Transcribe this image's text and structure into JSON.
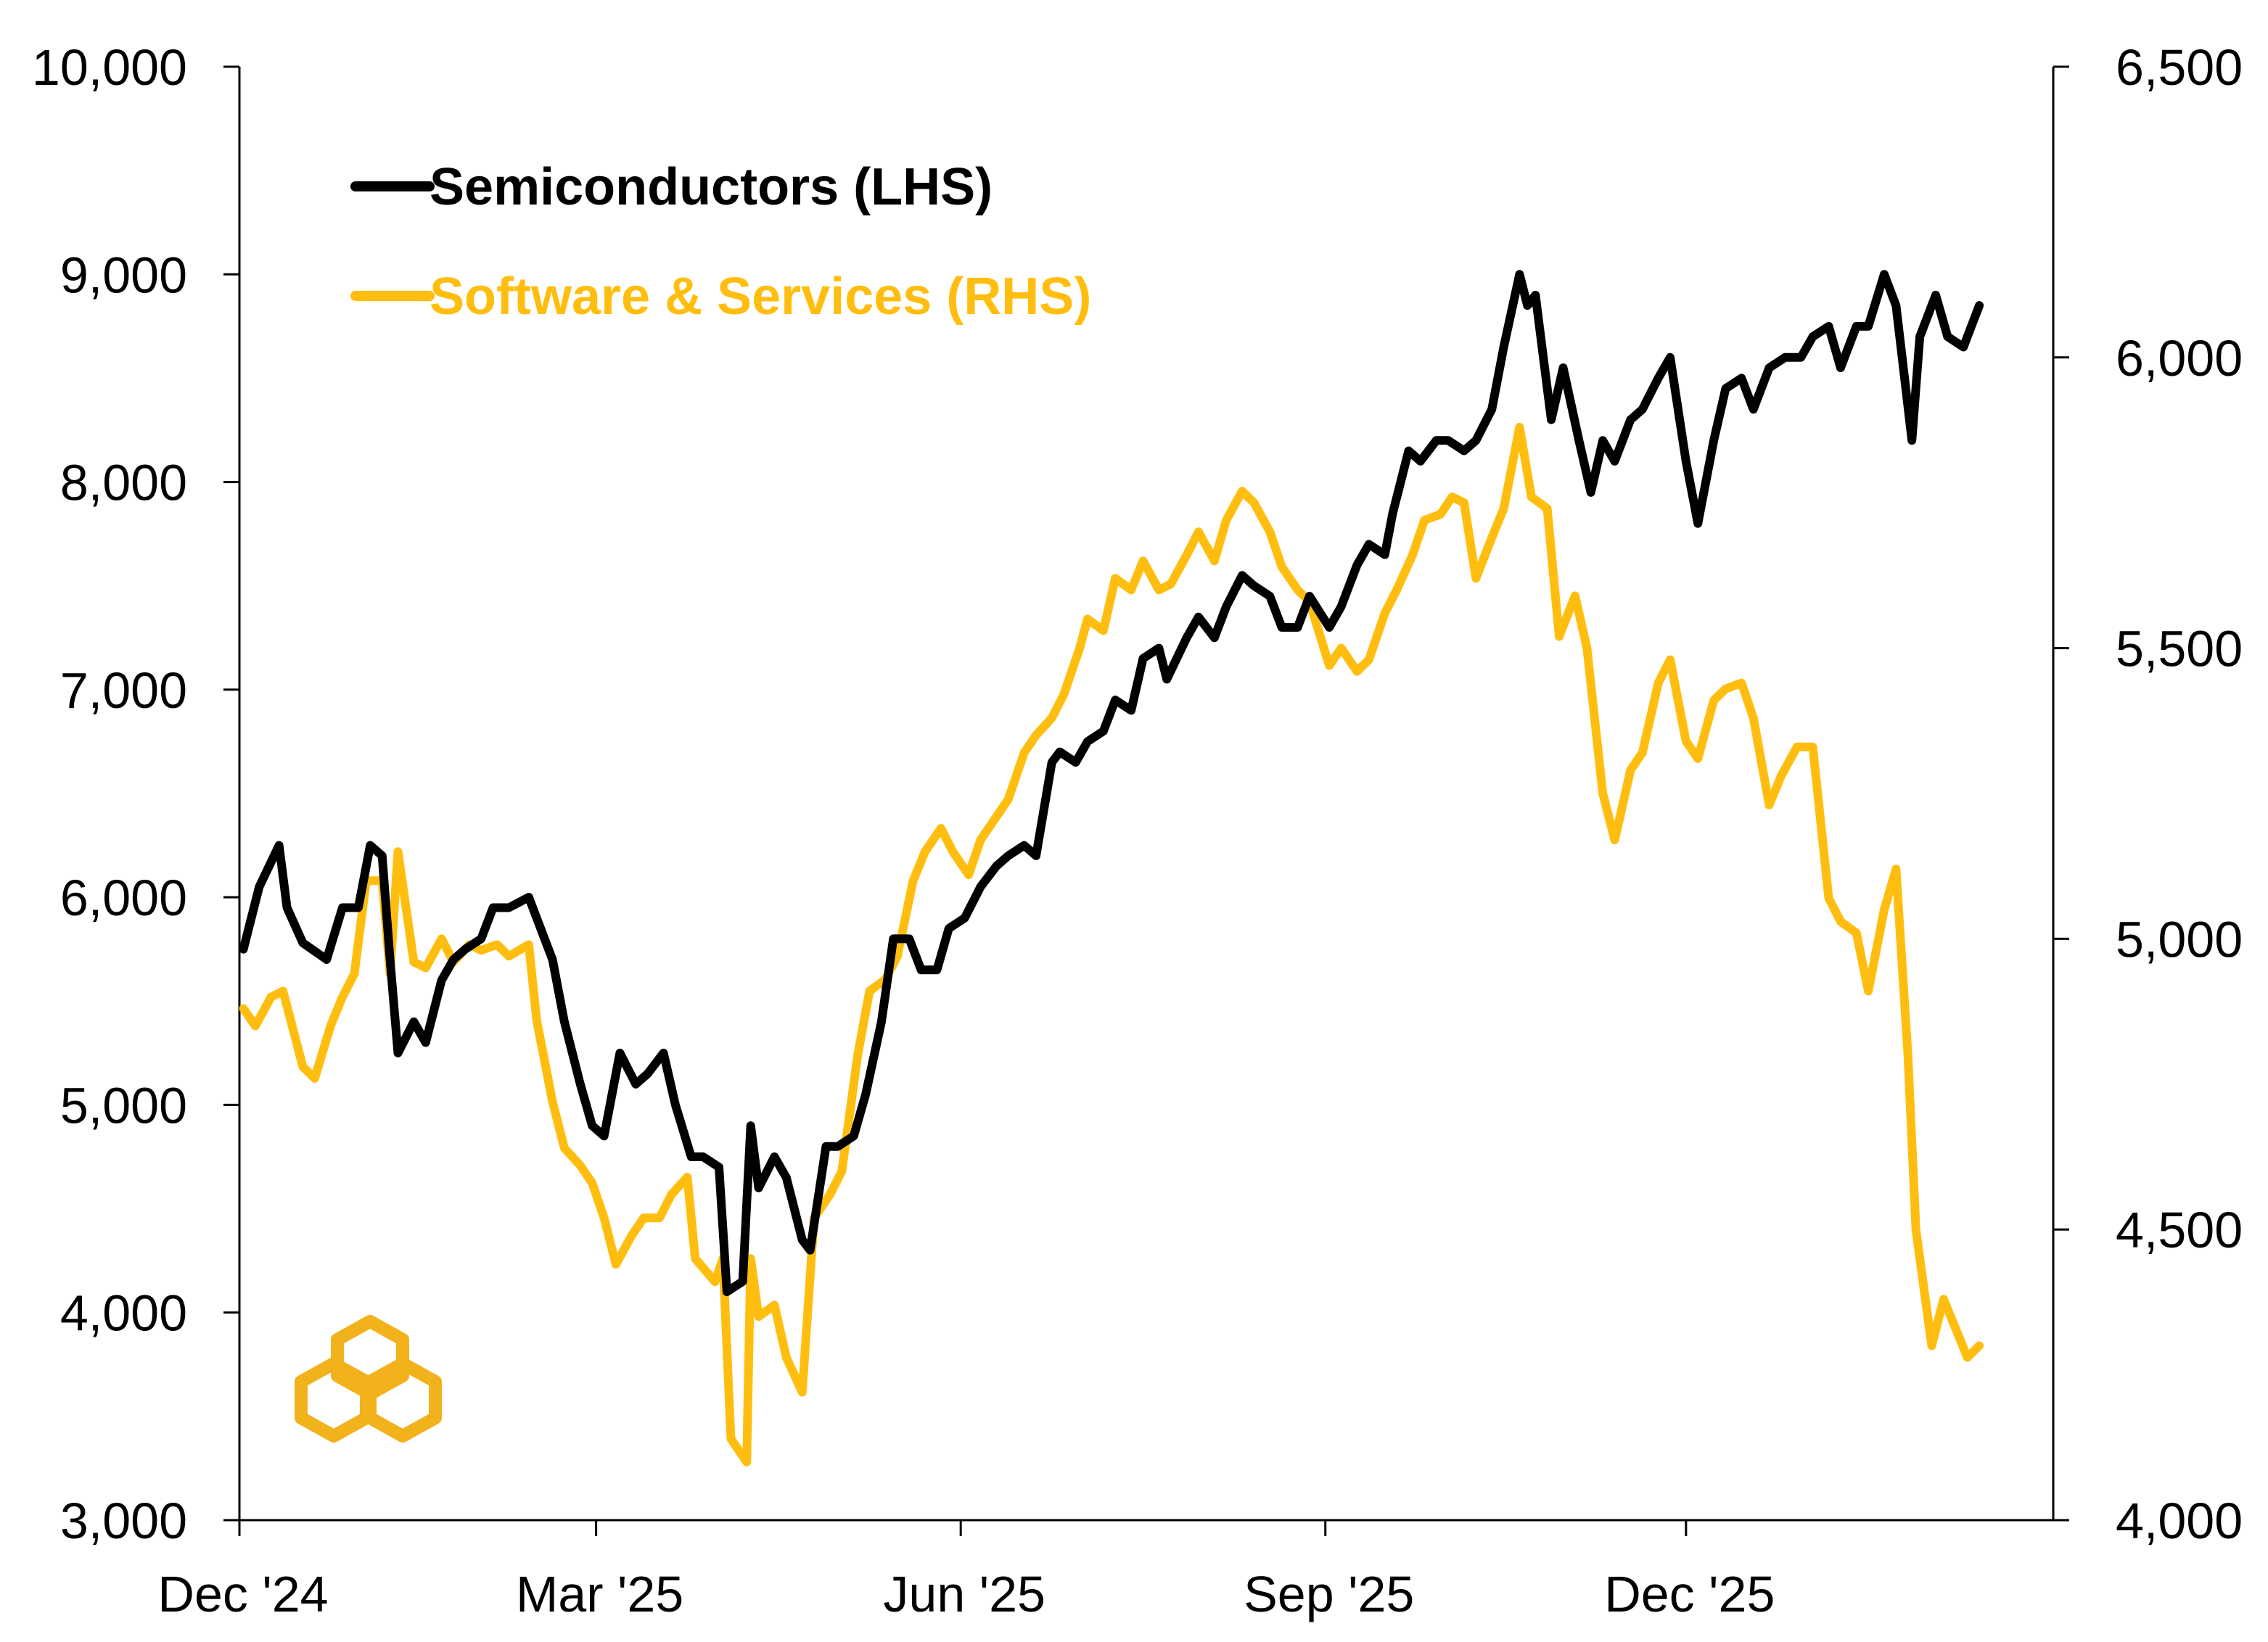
{
  "chart_data": {
    "type": "line",
    "x_ticks": [
      "Dec '24",
      "Mar '25",
      "Jun '25",
      "Sep '25",
      "Dec '25"
    ],
    "y_left": {
      "min": 3000,
      "max": 10000,
      "ticks": [
        "3,000",
        "4,000",
        "5,000",
        "6,000",
        "7,000",
        "8,000",
        "9,000",
        "10,000"
      ]
    },
    "y_right": {
      "min": 4000,
      "max": 6500,
      "ticks": [
        "4,000",
        "4,500",
        "5,000",
        "5,500",
        "6,000",
        "6,500"
      ]
    },
    "grid": false,
    "legend_position": "top-left",
    "series": [
      {
        "name": "Semiconductors (LHS)",
        "axis": "left",
        "color": "#000000",
        "points": [
          [
            "2024-12-02",
            5750
          ],
          [
            "2024-12-06",
            6050
          ],
          [
            "2024-12-11",
            6250
          ],
          [
            "2024-12-13",
            5950
          ],
          [
            "2024-12-17",
            5780
          ],
          [
            "2024-12-23",
            5700
          ],
          [
            "2024-12-27",
            5950
          ],
          [
            "2024-12-31",
            5950
          ],
          [
            "2025-01-03",
            6250
          ],
          [
            "2025-01-06",
            6200
          ],
          [
            "2025-01-08",
            5700
          ],
          [
            "2025-01-10",
            5250
          ],
          [
            "2025-01-14",
            5400
          ],
          [
            "2025-01-17",
            5300
          ],
          [
            "2025-01-21",
            5600
          ],
          [
            "2025-01-24",
            5700
          ],
          [
            "2025-01-27",
            5750
          ],
          [
            "2025-01-31",
            5800
          ],
          [
            "2025-02-03",
            5950
          ],
          [
            "2025-02-07",
            5950
          ],
          [
            "2025-02-12",
            6000
          ],
          [
            "2025-02-14",
            5900
          ],
          [
            "2025-02-18",
            5700
          ],
          [
            "2025-02-21",
            5400
          ],
          [
            "2025-02-25",
            5100
          ],
          [
            "2025-02-28",
            4900
          ],
          [
            "2025-03-03",
            4850
          ],
          [
            "2025-03-05",
            5050
          ],
          [
            "2025-03-07",
            5250
          ],
          [
            "2025-03-11",
            5100
          ],
          [
            "2025-03-14",
            5150
          ],
          [
            "2025-03-18",
            5250
          ],
          [
            "2025-03-21",
            5000
          ],
          [
            "2025-03-25",
            4750
          ],
          [
            "2025-03-28",
            4750
          ],
          [
            "2025-04-01",
            4700
          ],
          [
            "2025-04-03",
            4100
          ],
          [
            "2025-04-07",
            4150
          ],
          [
            "2025-04-09",
            4900
          ],
          [
            "2025-04-11",
            4600
          ],
          [
            "2025-04-15",
            4750
          ],
          [
            "2025-04-18",
            4650
          ],
          [
            "2025-04-22",
            4350
          ],
          [
            "2025-04-24",
            4300
          ],
          [
            "2025-04-28",
            4800
          ],
          [
            "2025-05-01",
            4800
          ],
          [
            "2025-05-05",
            4850
          ],
          [
            "2025-05-08",
            5050
          ],
          [
            "2025-05-12",
            5400
          ],
          [
            "2025-05-15",
            5800
          ],
          [
            "2025-05-19",
            5800
          ],
          [
            "2025-05-22",
            5650
          ],
          [
            "2025-05-26",
            5650
          ],
          [
            "2025-05-29",
            5850
          ],
          [
            "2025-06-02",
            5900
          ],
          [
            "2025-06-06",
            6050
          ],
          [
            "2025-06-10",
            6150
          ],
          [
            "2025-06-13",
            6200
          ],
          [
            "2025-06-17",
            6250
          ],
          [
            "2025-06-20",
            6200
          ],
          [
            "2025-06-24",
            6650
          ],
          [
            "2025-06-26",
            6700
          ],
          [
            "2025-06-30",
            6650
          ],
          [
            "2025-07-03",
            6750
          ],
          [
            "2025-07-07",
            6800
          ],
          [
            "2025-07-10",
            6950
          ],
          [
            "2025-07-14",
            6900
          ],
          [
            "2025-07-17",
            7150
          ],
          [
            "2025-07-21",
            7200
          ],
          [
            "2025-07-23",
            7050
          ],
          [
            "2025-07-28",
            7250
          ],
          [
            "2025-07-31",
            7350
          ],
          [
            "2025-08-04",
            7250
          ],
          [
            "2025-08-07",
            7400
          ],
          [
            "2025-08-11",
            7550
          ],
          [
            "2025-08-14",
            7500
          ],
          [
            "2025-08-18",
            7450
          ],
          [
            "2025-08-21",
            7300
          ],
          [
            "2025-08-25",
            7300
          ],
          [
            "2025-08-28",
            7450
          ],
          [
            "2025-09-02",
            7300
          ],
          [
            "2025-09-05",
            7400
          ],
          [
            "2025-09-09",
            7600
          ],
          [
            "2025-09-12",
            7700
          ],
          [
            "2025-09-16",
            7650
          ],
          [
            "2025-09-18",
            7850
          ],
          [
            "2025-09-22",
            8150
          ],
          [
            "2025-09-25",
            8100
          ],
          [
            "2025-09-29",
            8200
          ],
          [
            "2025-10-02",
            8200
          ],
          [
            "2025-10-06",
            8150
          ],
          [
            "2025-10-09",
            8200
          ],
          [
            "2025-10-13",
            8350
          ],
          [
            "2025-10-16",
            8650
          ],
          [
            "2025-10-20",
            9000
          ],
          [
            "2025-10-22",
            8850
          ],
          [
            "2025-10-24",
            8900
          ],
          [
            "2025-10-28",
            8300
          ],
          [
            "2025-10-31",
            8550
          ],
          [
            "2025-11-04",
            8200
          ],
          [
            "2025-11-07",
            7950
          ],
          [
            "2025-11-10",
            8200
          ],
          [
            "2025-11-13",
            8100
          ],
          [
            "2025-11-17",
            8300
          ],
          [
            "2025-11-20",
            8350
          ],
          [
            "2025-11-24",
            8500
          ],
          [
            "2025-11-27",
            8600
          ],
          [
            "2025-12-01",
            8100
          ],
          [
            "2025-12-04",
            7800
          ],
          [
            "2025-12-08",
            8200
          ],
          [
            "2025-12-11",
            8450
          ],
          [
            "2025-12-15",
            8500
          ],
          [
            "2025-12-18",
            8350
          ],
          [
            "2025-12-22",
            8550
          ],
          [
            "2025-12-26",
            8600
          ],
          [
            "2025-12-30",
            8600
          ],
          [
            "2026-01-02",
            8700
          ],
          [
            "2026-01-06",
            8750
          ],
          [
            "2026-01-09",
            8550
          ],
          [
            "2026-01-13",
            8750
          ],
          [
            "2026-01-16",
            8750
          ],
          [
            "2026-01-20",
            9000
          ],
          [
            "2026-01-23",
            8850
          ],
          [
            "2026-01-27",
            8200
          ],
          [
            "2026-01-29",
            8700
          ],
          [
            "2026-02-02",
            8900
          ],
          [
            "2026-02-05",
            8700
          ],
          [
            "2026-02-09",
            8650
          ],
          [
            "2026-02-13",
            8850
          ]
        ]
      },
      {
        "name": "Software & Services (RHS)",
        "axis": "right",
        "color": "#FFBE0F",
        "points": [
          [
            "2024-12-02",
            4880
          ],
          [
            "2024-12-05",
            4850
          ],
          [
            "2024-12-09",
            4900
          ],
          [
            "2024-12-12",
            4910
          ],
          [
            "2024-12-17",
            4780
          ],
          [
            "2024-12-20",
            4760
          ],
          [
            "2024-12-24",
            4850
          ],
          [
            "2024-12-27",
            4900
          ],
          [
            "2024-12-30",
            4940
          ],
          [
            "2025-01-02",
            5100
          ],
          [
            "2025-01-06",
            5100
          ],
          [
            "2025-01-08",
            4940
          ],
          [
            "2025-01-10",
            5150
          ],
          [
            "2025-01-14",
            4960
          ],
          [
            "2025-01-17",
            4950
          ],
          [
            "2025-01-21",
            5000
          ],
          [
            "2025-01-24",
            4960
          ],
          [
            "2025-01-28",
            4990
          ],
          [
            "2025-01-31",
            4980
          ],
          [
            "2025-02-04",
            4990
          ],
          [
            "2025-02-07",
            4970
          ],
          [
            "2025-02-12",
            4990
          ],
          [
            "2025-02-14",
            4860
          ],
          [
            "2025-02-18",
            4720
          ],
          [
            "2025-02-21",
            4640
          ],
          [
            "2025-02-25",
            4610
          ],
          [
            "2025-02-28",
            4580
          ],
          [
            "2025-03-03",
            4520
          ],
          [
            "2025-03-06",
            4440
          ],
          [
            "2025-03-10",
            4490
          ],
          [
            "2025-03-13",
            4520
          ],
          [
            "2025-03-17",
            4520
          ],
          [
            "2025-03-20",
            4560
          ],
          [
            "2025-03-24",
            4590
          ],
          [
            "2025-03-26",
            4450
          ],
          [
            "2025-03-31",
            4410
          ],
          [
            "2025-04-02",
            4450
          ],
          [
            "2025-04-04",
            4140
          ],
          [
            "2025-04-08",
            4100
          ],
          [
            "2025-04-09",
            4450
          ],
          [
            "2025-04-11",
            4350
          ],
          [
            "2025-04-15",
            4370
          ],
          [
            "2025-04-18",
            4280
          ],
          [
            "2025-04-22",
            4220
          ],
          [
            "2025-04-25",
            4520
          ],
          [
            "2025-04-29",
            4560
          ],
          [
            "2025-05-02",
            4600
          ],
          [
            "2025-05-06",
            4800
          ],
          [
            "2025-05-09",
            4910
          ],
          [
            "2025-05-13",
            4930
          ],
          [
            "2025-05-16",
            4970
          ],
          [
            "2025-05-20",
            5100
          ],
          [
            "2025-05-23",
            5150
          ],
          [
            "2025-05-27",
            5190
          ],
          [
            "2025-05-30",
            5150
          ],
          [
            "2025-06-03",
            5110
          ],
          [
            "2025-06-06",
            5170
          ],
          [
            "2025-06-10",
            5210
          ],
          [
            "2025-06-13",
            5240
          ],
          [
            "2025-06-17",
            5320
          ],
          [
            "2025-06-20",
            5350
          ],
          [
            "2025-06-24",
            5380
          ],
          [
            "2025-06-27",
            5420
          ],
          [
            "2025-07-01",
            5500
          ],
          [
            "2025-07-03",
            5550
          ],
          [
            "2025-07-07",
            5530
          ],
          [
            "2025-07-10",
            5620
          ],
          [
            "2025-07-14",
            5600
          ],
          [
            "2025-07-17",
            5650
          ],
          [
            "2025-07-21",
            5600
          ],
          [
            "2025-07-24",
            5610
          ],
          [
            "2025-07-28",
            5660
          ],
          [
            "2025-07-31",
            5700
          ],
          [
            "2025-08-04",
            5650
          ],
          [
            "2025-08-07",
            5720
          ],
          [
            "2025-08-11",
            5770
          ],
          [
            "2025-08-14",
            5750
          ],
          [
            "2025-08-18",
            5700
          ],
          [
            "2025-08-21",
            5640
          ],
          [
            "2025-08-25",
            5600
          ],
          [
            "2025-08-28",
            5580
          ],
          [
            "2025-09-02",
            5470
          ],
          [
            "2025-09-05",
            5500
          ],
          [
            "2025-09-09",
            5460
          ],
          [
            "2025-09-12",
            5480
          ],
          [
            "2025-09-16",
            5560
          ],
          [
            "2025-09-19",
            5600
          ],
          [
            "2025-09-23",
            5660
          ],
          [
            "2025-09-26",
            5720
          ],
          [
            "2025-09-30",
            5730
          ],
          [
            "2025-10-03",
            5760
          ],
          [
            "2025-10-06",
            5750
          ],
          [
            "2025-10-09",
            5620
          ],
          [
            "2025-10-13",
            5690
          ],
          [
            "2025-10-16",
            5740
          ],
          [
            "2025-10-20",
            5880
          ],
          [
            "2025-10-23",
            5760
          ],
          [
            "2025-10-27",
            5740
          ],
          [
            "2025-10-30",
            5520
          ],
          [
            "2025-11-03",
            5590
          ],
          [
            "2025-11-06",
            5500
          ],
          [
            "2025-11-10",
            5250
          ],
          [
            "2025-11-13",
            5170
          ],
          [
            "2025-11-17",
            5290
          ],
          [
            "2025-11-20",
            5320
          ],
          [
            "2025-11-24",
            5440
          ],
          [
            "2025-11-27",
            5480
          ],
          [
            "2025-12-01",
            5340
          ],
          [
            "2025-12-04",
            5310
          ],
          [
            "2025-12-08",
            5410
          ],
          [
            "2025-12-11",
            5430
          ],
          [
            "2025-12-15",
            5440
          ],
          [
            "2025-12-18",
            5380
          ],
          [
            "2025-12-22",
            5230
          ],
          [
            "2025-12-25",
            5280
          ],
          [
            "2025-12-29",
            5330
          ],
          [
            "2026-01-02",
            5330
          ],
          [
            "2026-01-06",
            5070
          ],
          [
            "2026-01-09",
            5030
          ],
          [
            "2026-01-13",
            5010
          ],
          [
            "2026-01-16",
            4910
          ],
          [
            "2026-01-20",
            5050
          ],
          [
            "2026-01-23",
            5120
          ],
          [
            "2026-01-26",
            4800
          ],
          [
            "2026-01-28",
            4500
          ],
          [
            "2026-02-01",
            4300
          ],
          [
            "2026-02-04",
            4380
          ],
          [
            "2026-02-07",
            4330
          ],
          [
            "2026-02-10",
            4280
          ],
          [
            "2026-02-13",
            4300
          ]
        ]
      }
    ]
  },
  "logo": {
    "name": "hexagon-logo",
    "color": "#F2B21C"
  }
}
